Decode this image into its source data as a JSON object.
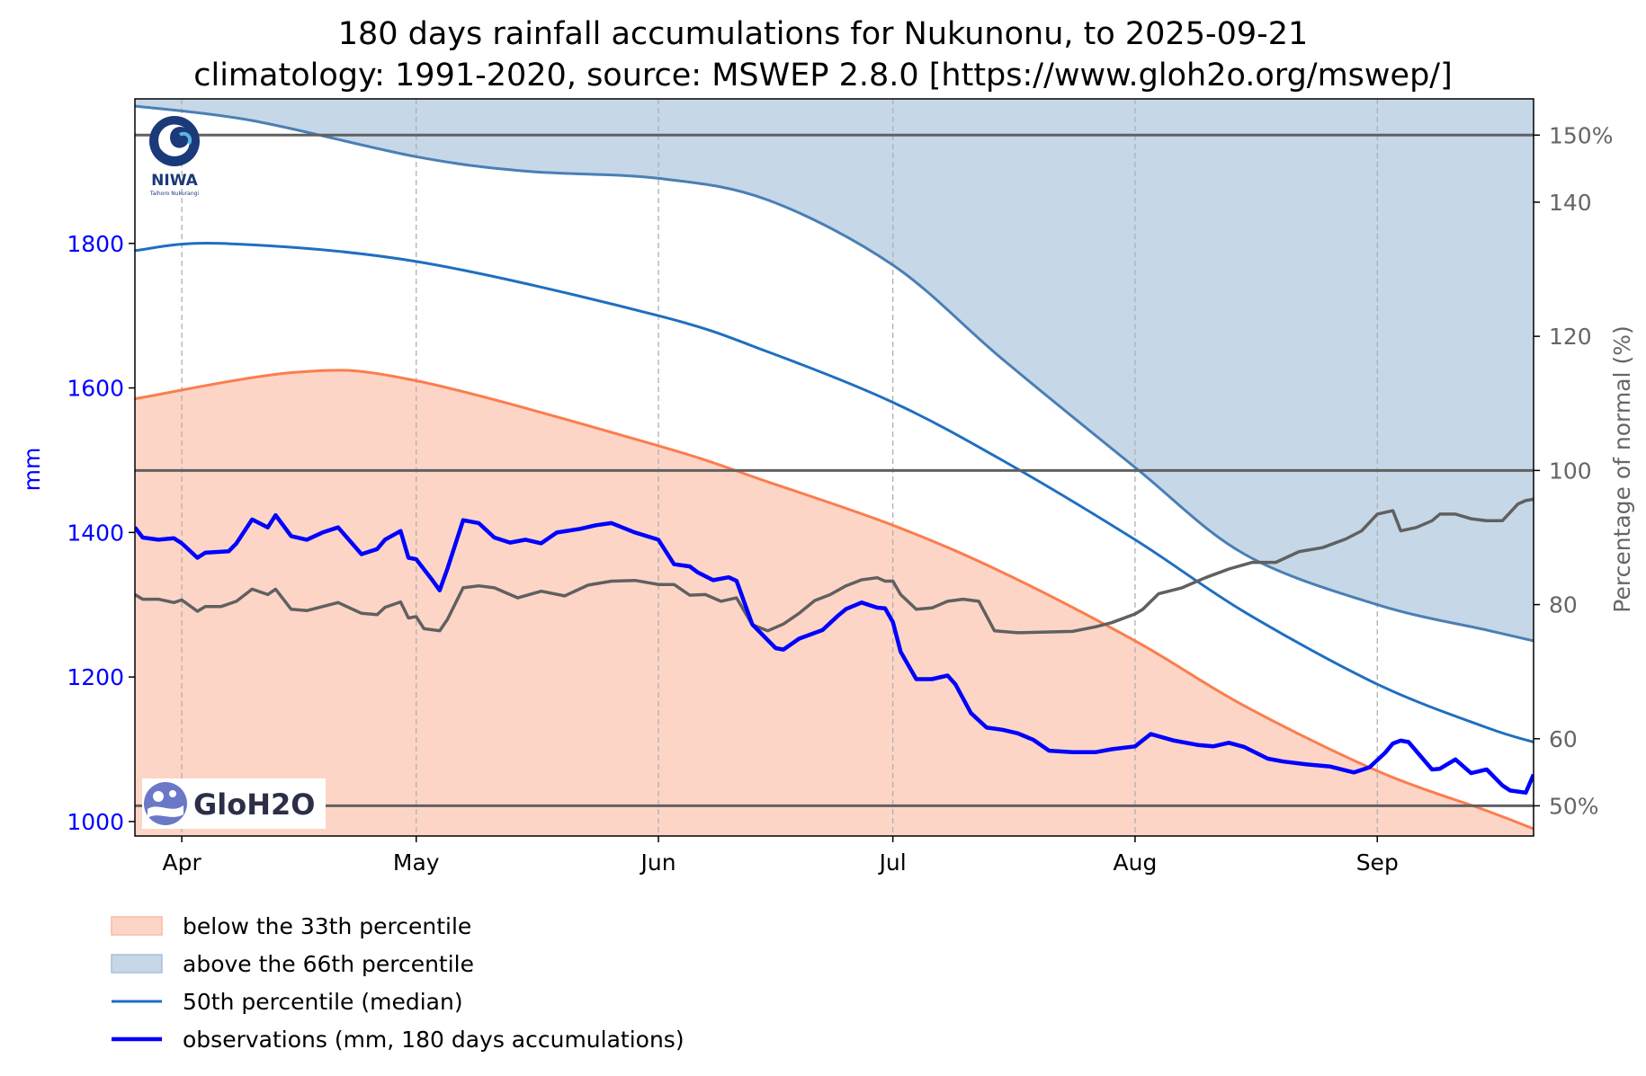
{
  "chart_data": {
    "type": "area",
    "title": "180 days rainfall accumulations for Nukunonu, to 2025-09-21",
    "subtitle": "climatology: 1991-2020, source: MSWEP 2.8.0 [https://www.gloh2o.org/mswep/]",
    "ylabel": "mm",
    "y2label": "Percentage of normal (%)",
    "ylim": [
      980,
      2000
    ],
    "y2lim": [
      45.5,
      155.4
    ],
    "y_ticks": [
      1000,
      1200,
      1400,
      1600,
      1800
    ],
    "y2_ticks": [
      50,
      60,
      80,
      100,
      120,
      140,
      150
    ],
    "y2_tick_labels": [
      "50%",
      "60",
      "80",
      "100",
      "120",
      "140",
      "150%"
    ],
    "y2_reference_lines": [
      50,
      100,
      150
    ],
    "xlim": [
      "2025-03-26",
      "2025-09-21"
    ],
    "x_ticks": [
      "2025-04-01",
      "2025-05-01",
      "2025-06-01",
      "2025-07-01",
      "2025-08-01",
      "2025-09-01"
    ],
    "x_tick_labels": [
      "Apr",
      "May",
      "Jun",
      "Jul",
      "Aug",
      "Sep"
    ],
    "grid": "vertical dashed at month ticks",
    "legend_position": "bottom-left, below the plot",
    "colors": {
      "below": "#fdd5c6",
      "below_line": "#fb7d4d",
      "above": "#c6d7e8",
      "above_line": "#4a7fb5",
      "median": "#1f6fc0",
      "observations": "#0000ff",
      "percent": "#606060",
      "reference": "#606060"
    },
    "series": [
      {
        "name": "below the 33th percentile",
        "x": [
          "2025-03-26",
          "2025-04-16",
          "2025-05-01",
          "2025-06-01",
          "2025-06-15",
          "2025-07-01",
          "2025-07-15",
          "2025-08-01",
          "2025-08-15",
          "2025-09-01",
          "2025-09-15",
          "2025-09-21"
        ],
        "values": [
          1585,
          1622,
          1610,
          1520,
          1470,
          1410,
          1345,
          1250,
          1160,
          1070,
          1015,
          990
        ]
      },
      {
        "name": "above the 66th percentile",
        "x": [
          "2025-03-26",
          "2025-04-10",
          "2025-05-01",
          "2025-05-15",
          "2025-06-01",
          "2025-06-15",
          "2025-07-01",
          "2025-07-15",
          "2025-08-01",
          "2025-08-15",
          "2025-09-01",
          "2025-09-15",
          "2025-09-21"
        ],
        "values": [
          1990,
          1970,
          1920,
          1900,
          1890,
          1860,
          1770,
          1640,
          1490,
          1370,
          1300,
          1265,
          1250
        ]
      },
      {
        "name": "50th percentile (median)",
        "x": [
          "2025-03-26",
          "2025-04-06",
          "2025-05-01",
          "2025-06-01",
          "2025-06-15",
          "2025-07-01",
          "2025-07-15",
          "2025-08-01",
          "2025-08-15",
          "2025-09-01",
          "2025-09-15",
          "2025-09-21"
        ],
        "values": [
          1790,
          1800,
          1775,
          1700,
          1650,
          1580,
          1500,
          1390,
          1290,
          1190,
          1130,
          1110
        ]
      },
      {
        "name": "observations (mm, 180 days accumulations)",
        "x": [
          "2025-03-26",
          "2025-03-27",
          "2025-03-29",
          "2025-03-31",
          "2025-04-01",
          "2025-04-03",
          "2025-04-04",
          "2025-04-07",
          "2025-04-08",
          "2025-04-10",
          "2025-04-12",
          "2025-04-13",
          "2025-04-15",
          "2025-04-17",
          "2025-04-19",
          "2025-04-21",
          "2025-04-24",
          "2025-04-26",
          "2025-04-27",
          "2025-04-29",
          "2025-04-30",
          "2025-05-01",
          "2025-05-03",
          "2025-05-04",
          "2025-05-05",
          "2025-05-07",
          "2025-05-09",
          "2025-05-11",
          "2025-05-13",
          "2025-05-15",
          "2025-05-17",
          "2025-05-19",
          "2025-05-22",
          "2025-05-24",
          "2025-05-26",
          "2025-05-29",
          "2025-06-01",
          "2025-06-03",
          "2025-06-05",
          "2025-06-06",
          "2025-06-08",
          "2025-06-10",
          "2025-06-11",
          "2025-06-13",
          "2025-06-16",
          "2025-06-17",
          "2025-06-19",
          "2025-06-22",
          "2025-06-24",
          "2025-06-25",
          "2025-06-27",
          "2025-06-29",
          "2025-06-30",
          "2025-07-01",
          "2025-07-02",
          "2025-07-04",
          "2025-07-06",
          "2025-07-08",
          "2025-07-09",
          "2025-07-11",
          "2025-07-13",
          "2025-07-15",
          "2025-07-17",
          "2025-07-19",
          "2025-07-21",
          "2025-07-24",
          "2025-07-27",
          "2025-07-29",
          "2025-08-01",
          "2025-08-03",
          "2025-08-06",
          "2025-08-09",
          "2025-08-11",
          "2025-08-13",
          "2025-08-15",
          "2025-08-18",
          "2025-08-20",
          "2025-08-23",
          "2025-08-26",
          "2025-08-29",
          "2025-08-31",
          "2025-09-02",
          "2025-09-03",
          "2025-09-04",
          "2025-09-05",
          "2025-09-08",
          "2025-09-09",
          "2025-09-11",
          "2025-09-13",
          "2025-09-15",
          "2025-09-17",
          "2025-09-18",
          "2025-09-20",
          "2025-09-21"
        ],
        "values": [
          1407,
          1393,
          1390,
          1392,
          1385,
          1365,
          1372,
          1374,
          1385,
          1418,
          1407,
          1424,
          1395,
          1390,
          1400,
          1407,
          1370,
          1377,
          1390,
          1402,
          1365,
          1363,
          1335,
          1320,
          1350,
          1417,
          1413,
          1393,
          1386,
          1390,
          1385,
          1400,
          1405,
          1410,
          1413,
          1400,
          1390,
          1356,
          1353,
          1345,
          1334,
          1338,
          1333,
          1273,
          1240,
          1238,
          1253,
          1265,
          1285,
          1294,
          1303,
          1296,
          1295,
          1276,
          1235,
          1197,
          1197,
          1202,
          1190,
          1150,
          1130,
          1127,
          1122,
          1113,
          1098,
          1096,
          1096,
          1100,
          1104,
          1121,
          1112,
          1106,
          1104,
          1109,
          1103,
          1087,
          1083,
          1079,
          1076,
          1068,
          1075,
          1095,
          1108,
          1112,
          1110,
          1072,
          1073,
          1086,
          1067,
          1072,
          1050,
          1043,
          1040,
          1065
        ]
      },
      {
        "name": "percentage of normal",
        "x": [
          "2025-03-26",
          "2025-03-27",
          "2025-03-29",
          "2025-03-31",
          "2025-04-01",
          "2025-04-03",
          "2025-04-04",
          "2025-04-06",
          "2025-04-08",
          "2025-04-10",
          "2025-04-12",
          "2025-04-13",
          "2025-04-15",
          "2025-04-17",
          "2025-04-19",
          "2025-04-21",
          "2025-04-24",
          "2025-04-26",
          "2025-04-27",
          "2025-04-29",
          "2025-04-30",
          "2025-05-01",
          "2025-05-02",
          "2025-05-04",
          "2025-05-05",
          "2025-05-07",
          "2025-05-09",
          "2025-05-11",
          "2025-05-14",
          "2025-05-17",
          "2025-05-20",
          "2025-05-23",
          "2025-05-26",
          "2025-05-29",
          "2025-06-01",
          "2025-06-03",
          "2025-06-05",
          "2025-06-07",
          "2025-06-09",
          "2025-06-11",
          "2025-06-13",
          "2025-06-15",
          "2025-06-17",
          "2025-06-19",
          "2025-06-21",
          "2025-06-23",
          "2025-06-25",
          "2025-06-27",
          "2025-06-29",
          "2025-06-30",
          "2025-07-01",
          "2025-07-02",
          "2025-07-04",
          "2025-07-06",
          "2025-07-08",
          "2025-07-10",
          "2025-07-12",
          "2025-07-14",
          "2025-07-17",
          "2025-07-20",
          "2025-07-24",
          "2025-07-27",
          "2025-07-29",
          "2025-08-01",
          "2025-08-02",
          "2025-08-04",
          "2025-08-07",
          "2025-08-10",
          "2025-08-13",
          "2025-08-16",
          "2025-08-19",
          "2025-08-22",
          "2025-08-25",
          "2025-08-28",
          "2025-08-30",
          "2025-09-01",
          "2025-09-03",
          "2025-09-04",
          "2025-09-06",
          "2025-09-08",
          "2025-09-09",
          "2025-09-11",
          "2025-09-13",
          "2025-09-15",
          "2025-09-17",
          "2025-09-19",
          "2025-09-20",
          "2025-09-21"
        ],
        "values": [
          81.5,
          80.8,
          80.8,
          80.3,
          80.7,
          79.0,
          79.7,
          79.7,
          80.5,
          82.3,
          81.5,
          82.3,
          79.3,
          79.1,
          79.7,
          80.3,
          78.7,
          78.5,
          79.6,
          80.4,
          78.0,
          78.2,
          76.4,
          76.1,
          77.8,
          82.5,
          82.8,
          82.5,
          81.0,
          82.0,
          81.3,
          82.9,
          83.5,
          83.6,
          83.0,
          83.0,
          81.4,
          81.5,
          80.5,
          81.0,
          77.0,
          76.1,
          77.1,
          78.7,
          80.6,
          81.5,
          82.8,
          83.7,
          84.0,
          83.5,
          83.5,
          81.5,
          79.3,
          79.5,
          80.5,
          80.8,
          80.5,
          76.1,
          75.8,
          75.9,
          76.0,
          76.7,
          77.3,
          78.6,
          79.3,
          81.6,
          82.5,
          84.0,
          85.3,
          86.3,
          86.3,
          87.9,
          88.5,
          89.8,
          91.0,
          93.5,
          94.0,
          91.0,
          91.5,
          92.5,
          93.5,
          93.5,
          92.8,
          92.5,
          92.5,
          95.0,
          95.5,
          95.7
        ]
      }
    ]
  },
  "legend": {
    "below": "below the 33th percentile",
    "above": "above the 66th percentile",
    "median": "50th percentile (median)",
    "observations": "observations (mm, 180 days accumulations)"
  },
  "logos": {
    "niwa": "NIWA",
    "niwa_tagline": "Taihoro Nukurangi",
    "gloh2o": "GloH2O"
  }
}
